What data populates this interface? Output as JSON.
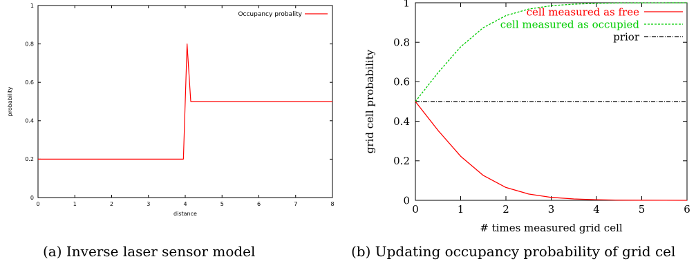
{
  "chart_data": [
    {
      "type": "line",
      "title": "",
      "xlabel": "distance",
      "ylabel": "probability",
      "xlim": [
        0,
        8
      ],
      "ylim": [
        0,
        1
      ],
      "x_ticks": [
        "0",
        "1",
        "2",
        "3",
        "4",
        "5",
        "6",
        "7",
        "8"
      ],
      "y_ticks": [
        "0",
        "0.2",
        "0.4",
        "0.6",
        "0.8",
        "1"
      ],
      "legend_position": "top-right",
      "series": [
        {
          "name": "Occupancy probality",
          "color": "#ff0000",
          "x": [
            0,
            3.95,
            4.05,
            4.15,
            8
          ],
          "y": [
            0.2,
            0.2,
            0.8,
            0.5,
            0.5
          ]
        }
      ]
    },
    {
      "type": "line",
      "title": "",
      "xlabel": "# times measured grid cell",
      "ylabel": "grid cell probability",
      "xlim": [
        0,
        6
      ],
      "ylim": [
        0,
        1
      ],
      "x_ticks": [
        "0",
        "1",
        "2",
        "3",
        "4",
        "5",
        "6"
      ],
      "y_ticks": [
        "0",
        "0.2",
        "0.4",
        "0.6",
        "0.8",
        "1"
      ],
      "legend_position": "top-right",
      "series": [
        {
          "name": "cell measured as free",
          "color": "#ff0000",
          "x": [
            0,
            0.5,
            1,
            1.5,
            2,
            2.5,
            3,
            3.5,
            4,
            4.5,
            5,
            5.5,
            6
          ],
          "y": [
            0.5,
            0.354,
            0.223,
            0.126,
            0.065,
            0.032,
            0.015,
            0.007,
            0.003,
            0.001,
            0.0006,
            0.0003,
            0.0001
          ]
        },
        {
          "name": "cell measured as occupied",
          "color": "#00cc00",
          "x": [
            0,
            0.5,
            1,
            1.5,
            2,
            2.5,
            3,
            3.5,
            4,
            4.5,
            5,
            5.5,
            6
          ],
          "y": [
            0.5,
            0.646,
            0.777,
            0.874,
            0.935,
            0.968,
            0.985,
            0.993,
            0.997,
            0.999,
            0.9994,
            0.9997,
            0.9999
          ]
        },
        {
          "name": "prior",
          "color": "#000000",
          "x": [
            0,
            6
          ],
          "y": [
            0.5,
            0.5
          ]
        }
      ]
    }
  ],
  "captions": {
    "a": "(a) Inverse laser sensor model",
    "b": "(b) Updating occupancy probability of grid cel"
  }
}
